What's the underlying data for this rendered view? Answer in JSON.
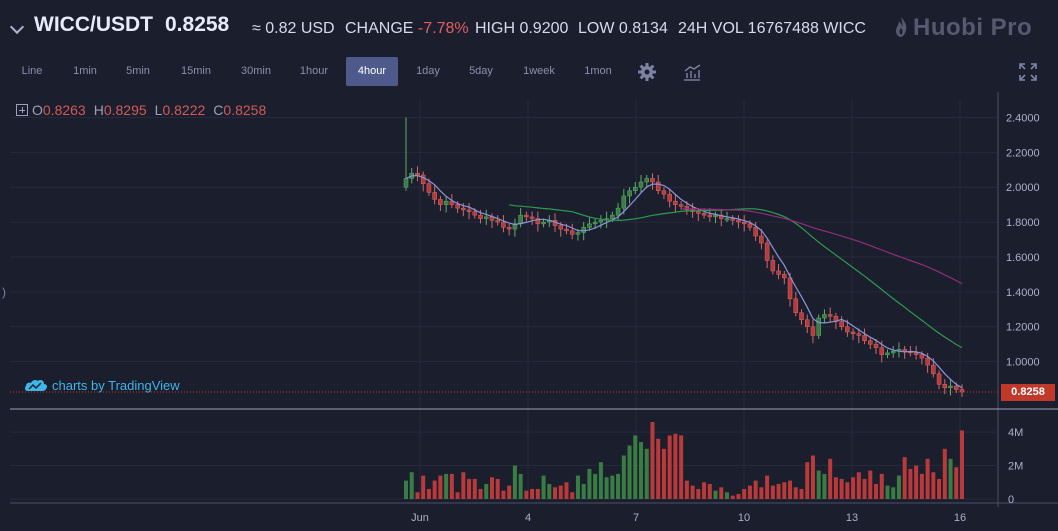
{
  "header": {
    "pair": "WICC/USDT",
    "price": "0.8258",
    "usd_approx": "≈ 0.82 USD",
    "change_label": "CHANGE",
    "change_value": "-7.78%",
    "high_label": "HIGH",
    "high_value": "0.9200",
    "low_label": "LOW",
    "low_value": "0.8134",
    "vol_label": "24H VOL",
    "vol_value": "16767488 WICC",
    "logo_text": "Huobi Pro"
  },
  "toolbar": {
    "timeframes": [
      "Line",
      "1min",
      "5min",
      "15min",
      "30min",
      "1hour",
      "4hour",
      "1day",
      "5day",
      "1week",
      "1mon"
    ],
    "active": "4hour",
    "settings_icon": "gear-icon",
    "indicators_icon": "indicators-icon",
    "fullscreen_icon": "fullscreen-icon"
  },
  "ohlc": {
    "o_label": "O",
    "o_value": "0.8263",
    "h_label": "H",
    "h_value": "0.8295",
    "l_label": "L",
    "l_value": "0.8222",
    "c_label": "C",
    "c_value": "0.8258"
  },
  "attribution": "charts by TradingView",
  "last_price_tag": "0.8258",
  "colors": {
    "up": "#3a7d44",
    "down": "#b83a3a",
    "ma_fast": "#8d95d8",
    "ma_mid": "#2f9a4f",
    "ma_slow": "#8e2f7a",
    "background": "#1b1e2d"
  },
  "chart_data": {
    "type": "candlestick",
    "interval": "4hour",
    "price_axis": {
      "ticks": [
        "2.4000",
        "2.2000",
        "2.0000",
        "1.8000",
        "1.6000",
        "1.4000",
        "1.2000",
        "1.0000"
      ],
      "range": [
        0.78,
        2.5
      ]
    },
    "volume_axis": {
      "ticks": [
        "4M",
        "2M",
        "0"
      ],
      "range": [
        0,
        5.2
      ]
    },
    "x_labels": [
      "Jun",
      "4",
      "7",
      "10",
      "13",
      "16"
    ],
    "close_series": [
      2.05,
      2.08,
      2.07,
      2.02,
      1.97,
      1.93,
      1.9,
      1.92,
      1.9,
      1.88,
      1.87,
      1.86,
      1.84,
      1.82,
      1.83,
      1.81,
      1.8,
      1.77,
      1.76,
      1.79,
      1.84,
      1.83,
      1.82,
      1.79,
      1.8,
      1.81,
      1.78,
      1.76,
      1.75,
      1.73,
      1.74,
      1.77,
      1.79,
      1.8,
      1.81,
      1.82,
      1.84,
      1.88,
      1.95,
      1.98,
      2.0,
      2.03,
      2.05,
      2.03,
      1.98,
      1.96,
      1.92,
      1.9,
      1.89,
      1.87,
      1.86,
      1.85,
      1.84,
      1.83,
      1.84,
      1.82,
      1.82,
      1.81,
      1.8,
      1.79,
      1.77,
      1.72,
      1.68,
      1.58,
      1.52,
      1.5,
      1.48,
      1.36,
      1.28,
      1.24,
      1.2,
      1.15,
      1.25,
      1.27,
      1.26,
      1.23,
      1.2,
      1.17,
      1.16,
      1.15,
      1.12,
      1.1,
      1.08,
      1.04,
      1.05,
      1.06,
      1.07,
      1.06,
      1.05,
      1.04,
      1.02,
      0.98,
      0.93,
      0.87,
      0.85,
      0.86,
      0.84,
      0.8258
    ],
    "volume_series": [
      1.1,
      1.6,
      0.4,
      1.4,
      0.6,
      1.1,
      1.4,
      1.5,
      1.5,
      0.4,
      1.6,
      1.2,
      1.2,
      0.6,
      0.9,
      1.3,
      1.2,
      0.5,
      0.8,
      2.0,
      1.5,
      0.5,
      0.6,
      0.6,
      1.4,
      0.9,
      0.7,
      0.8,
      1.0,
      0.4,
      1.4,
      0.9,
      1.8,
      1.5,
      2.2,
      1.3,
      1.4,
      1.5,
      2.6,
      3.2,
      3.8,
      3.4,
      3.0,
      4.6,
      3.6,
      3.0,
      3.8,
      3.9,
      3.8,
      1.1,
      0.8,
      0.6,
      1.0,
      0.9,
      0.5,
      0.7,
      0.4,
      0.2,
      0.3,
      0.6,
      0.8,
      1.1,
      0.7,
      1.4,
      0.8,
      0.9,
      1.0,
      1.1,
      0.7,
      0.6,
      2.2,
      2.6,
      1.7,
      1.5,
      2.4,
      1.3,
      1.2,
      1.0,
      1.3,
      1.6,
      1.2,
      1.7,
      0.9,
      1.5,
      0.8,
      0.7,
      1.4,
      2.5,
      1.8,
      2.0,
      1.5,
      2.4,
      1.6,
      1.2,
      3.0,
      2.4,
      1.9,
      4.1
    ]
  }
}
